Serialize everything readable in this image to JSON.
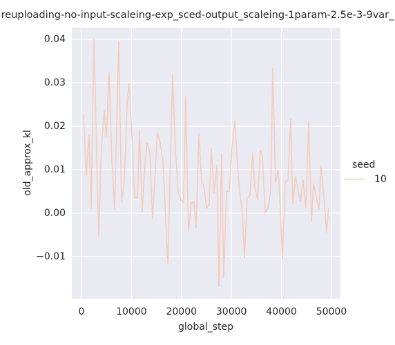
{
  "chart_data": {
    "type": "line",
    "title": "reuploading-no-input-scaleing-exp_sced-output_scaleing-1param-2.5e-3-9var_",
    "x_label": "global_step",
    "y_label": "old_approx_kl",
    "legend_title": "seed",
    "legend_position": "outside right",
    "grid": true,
    "x": [
      400,
      970,
      1520,
      1930,
      2490,
      3450,
      4000,
      4560,
      4970,
      5520,
      6080,
      6630,
      7460,
      8010,
      8560,
      9120,
      9530,
      10080,
      10640,
      11190,
      11600,
      12150,
      12710,
      13120,
      13670,
      14230,
      15190,
      15750,
      16300,
      17270,
      18230,
      18780,
      19340,
      19890,
      20440,
      20860,
      21410,
      21960,
      22510,
      22930,
      23480,
      24030,
      24450,
      25000,
      25550,
      25970,
      26520,
      27070,
      27490,
      28040,
      28450,
      29010,
      29560,
      30110,
      30660,
      31220,
      31630,
      32180,
      32600,
      33150,
      33700,
      34250,
      34670,
      35220,
      35770,
      36190,
      36740,
      37290,
      37850,
      38260,
      38810,
      39360,
      39780,
      40190,
      40750,
      41300,
      41850,
      42270,
      42820,
      43370,
      43780,
      44340,
      44890,
      45440,
      46000,
      46410,
      46960,
      47510,
      47930,
      48480,
      49030,
      49450
    ],
    "series": [
      {
        "name": "10",
        "color": "#f2cdbf",
        "values": [
          0.0228,
          0.0087,
          0.018,
          0.001,
          0.04,
          -0.0054,
          0.015,
          0.0237,
          0.0175,
          0.0325,
          0.012,
          0.0008,
          0.0395,
          0.0025,
          0.007,
          0.025,
          0.03,
          0.018,
          0.0035,
          0.0035,
          0.019,
          0.0003,
          0.0115,
          0.0162,
          0.014,
          -0.0015,
          0.0187,
          0.016,
          0.012,
          -0.0118,
          0.032,
          0.015,
          0.005,
          0.003,
          0.0025,
          0.027,
          -0.0043,
          0.0025,
          0.0025,
          -0.0035,
          0.0185,
          0.007,
          0.0065,
          0.0012,
          0.002,
          0.015,
          0.0045,
          0.0112,
          -0.017,
          0.0138,
          -0.015,
          0.005,
          0.005,
          0.015,
          0.0213,
          0.011,
          0.005,
          0.0002,
          -0.0103,
          0.0035,
          0.004,
          0.014,
          0.006,
          0.003,
          0.0145,
          0.0133,
          0.0002,
          0.001,
          0.005,
          0.0334,
          0.007,
          0.01,
          0.0007,
          -0.0108,
          0.0073,
          0.0075,
          0.0218,
          0.002,
          0.0085,
          0.005,
          0.0025,
          0.0077,
          0.0012,
          0.0212,
          -0.002,
          0.0068,
          0.0038,
          0.0007,
          0.011,
          0.004,
          -0.0045,
          0.0012
        ]
      }
    ],
    "xlim": [
      -1930,
      51800
    ],
    "ylim": [
      -0.0197,
      0.0427
    ],
    "xticks": [
      0,
      10000,
      20000,
      30000,
      40000,
      50000
    ],
    "yticks": [
      {
        "value": -0.01,
        "label": "−0.01"
      },
      {
        "value": 0,
        "label": "0.00"
      },
      0.01,
      0.02,
      0.03,
      0.04
    ]
  }
}
